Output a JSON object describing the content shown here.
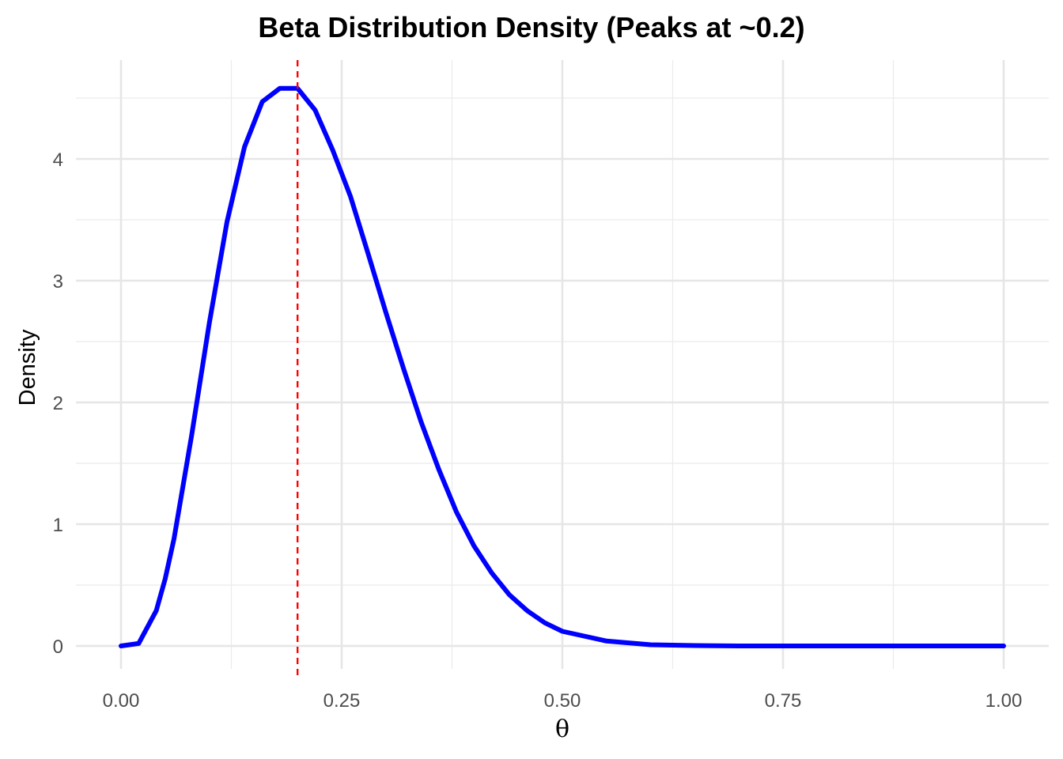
{
  "chart_data": {
    "type": "line",
    "title": "Beta Distribution Density (Peaks at ~0.2)",
    "xlabel": "θ",
    "ylabel": "Density",
    "xlim": [
      0,
      1
    ],
    "ylim": [
      0,
      4.6
    ],
    "x_ticks": [
      {
        "value": 0,
        "label": "0.00"
      },
      {
        "value": 0.25,
        "label": "0.25"
      },
      {
        "value": 0.5,
        "label": "0.50"
      },
      {
        "value": 0.75,
        "label": "0.75"
      },
      {
        "value": 1,
        "label": "1.00"
      }
    ],
    "y_ticks": [
      {
        "value": 0,
        "label": "0"
      },
      {
        "value": 1,
        "label": "1"
      },
      {
        "value": 2,
        "label": "2"
      },
      {
        "value": 3,
        "label": "3"
      },
      {
        "value": 4,
        "label": "4"
      }
    ],
    "grid": true,
    "series": [
      {
        "color": "#0000ff",
        "x": [
          0,
          0.02,
          0.04,
          0.05,
          0.06,
          0.08,
          0.1,
          0.12,
          0.14,
          0.16,
          0.18,
          0.2,
          0.22,
          0.24,
          0.26,
          0.28,
          0.3,
          0.32,
          0.34,
          0.36,
          0.38,
          0.4,
          0.42,
          0.44,
          0.46,
          0.48,
          0.5,
          0.55,
          0.6,
          0.65,
          0.7,
          0.8,
          0.9,
          1.0
        ],
        "y": [
          0,
          0.02,
          0.29,
          0.55,
          0.88,
          1.73,
          2.65,
          3.48,
          4.1,
          4.47,
          4.58,
          4.58,
          4.4,
          4.07,
          3.69,
          3.22,
          2.74,
          2.28,
          1.84,
          1.45,
          1.1,
          0.82,
          0.6,
          0.42,
          0.29,
          0.19,
          0.12,
          0.04,
          0.01,
          0.003,
          0,
          0,
          0,
          0
        ]
      }
    ],
    "reference_lines": [
      {
        "orientation": "vertical",
        "x": 0.2,
        "color": "#ff0000",
        "style": "dashed"
      }
    ]
  }
}
